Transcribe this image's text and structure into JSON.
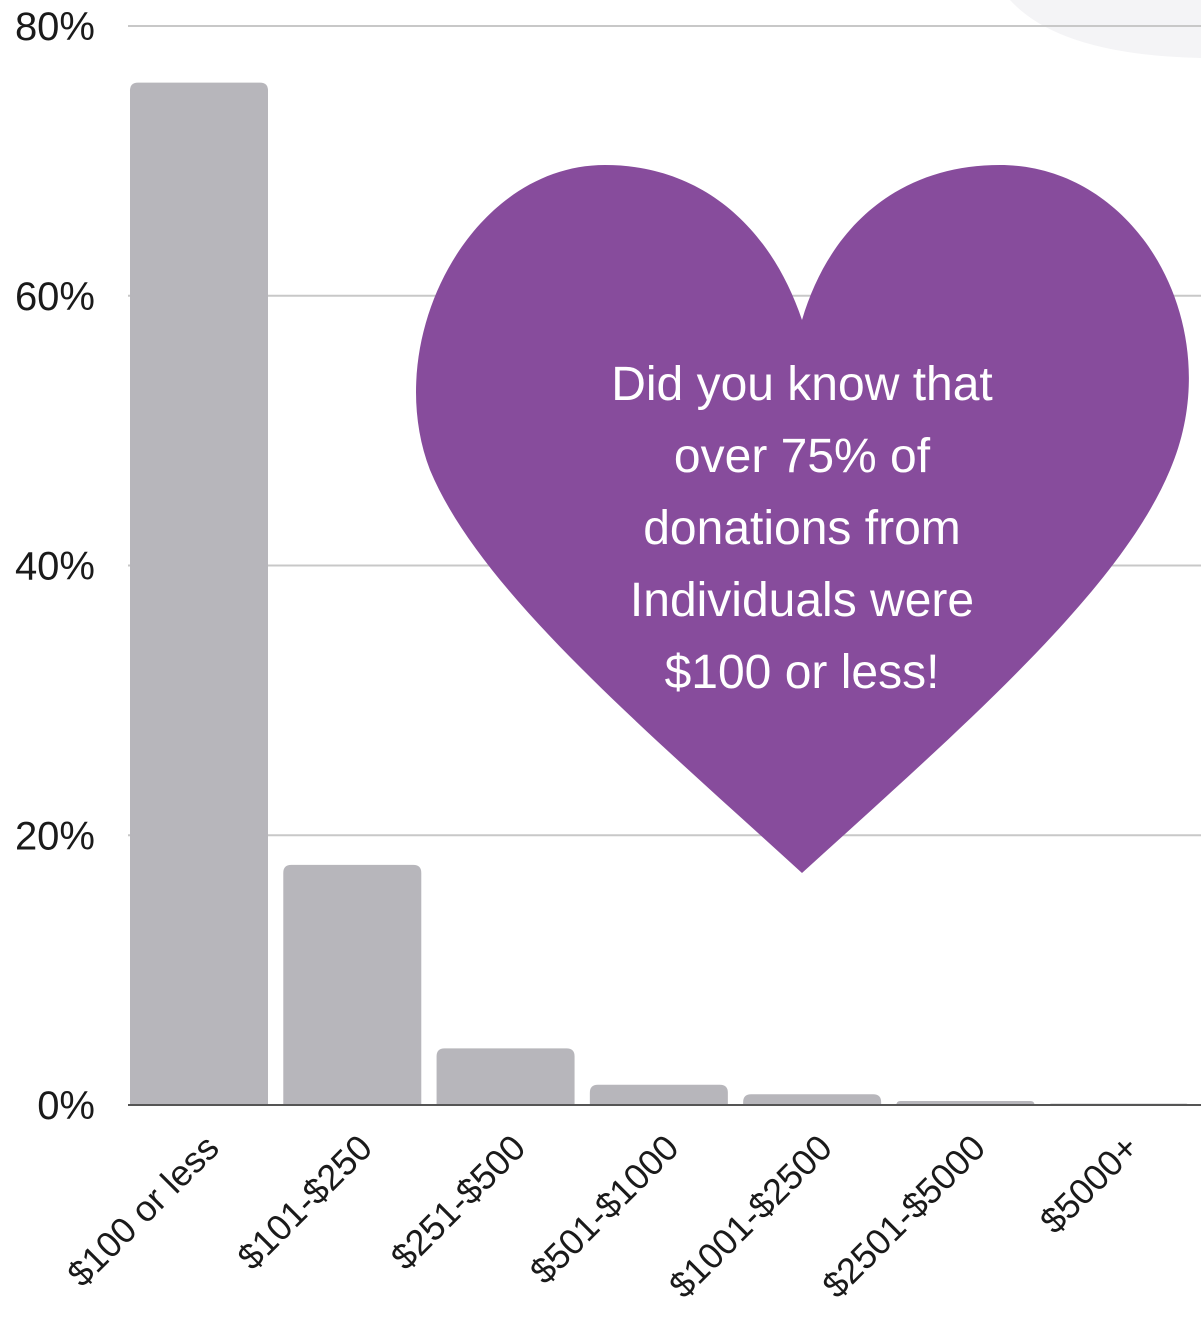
{
  "chart_data": {
    "type": "bar",
    "categories": [
      "$100 or less",
      "$101-$250",
      "$251-$500",
      "$501-$1000",
      "$1001-$2500",
      "$2501-$5000",
      "$5000+"
    ],
    "values": [
      75.8,
      17.8,
      4.2,
      1.5,
      0.8,
      0.3,
      0.1
    ],
    "ylim": [
      0,
      80
    ],
    "yticks": [
      0,
      20,
      40,
      60,
      80
    ],
    "ytick_labels": [
      "0%",
      "20%",
      "40%",
      "60%",
      "80%"
    ],
    "grid": true,
    "legend": "none",
    "annotation": {
      "lines": [
        "Did you know that",
        "over 75% of",
        "donations from",
        "Individuals were",
        "$100 or less!"
      ]
    }
  },
  "colors": {
    "bar": "#b7b6bb",
    "heart": "#874c9c",
    "heart_text": "#ffffff",
    "grid": "#c8c8c8",
    "axis": "#555555",
    "corner_shape": "#f4f4f6"
  }
}
